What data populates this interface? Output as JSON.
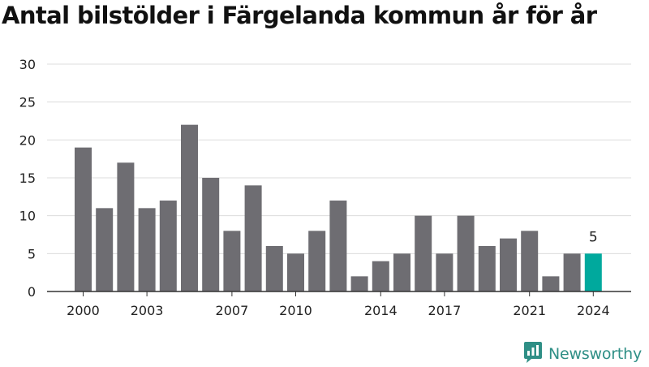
{
  "title": "Antal bilstölder i Färgelanda kommun år för år",
  "brand": {
    "name": "Newsworthy",
    "icon": "newsworthy-logo-icon",
    "color": "#2f8f86"
  },
  "colors": {
    "bar": "#6e6d72",
    "highlight": "#00a99d",
    "grid": "#dcdcdc",
    "axis": "#333333",
    "text": "#222222"
  },
  "chart_data": {
    "type": "bar",
    "title": "Antal bilstölder i Färgelanda kommun år för år",
    "xlabel": "",
    "ylabel": "",
    "categories": [
      "2000",
      "2001",
      "2002",
      "2003",
      "2004",
      "2005",
      "2006",
      "2007",
      "2008",
      "2009",
      "2010",
      "2011",
      "2012",
      "2013",
      "2014",
      "2015",
      "2016",
      "2017",
      "2018",
      "2019",
      "2020",
      "2021",
      "2022",
      "2023",
      "2024"
    ],
    "values": [
      19,
      11,
      17,
      11,
      12,
      22,
      15,
      8,
      14,
      6,
      5,
      8,
      12,
      2,
      4,
      5,
      10,
      5,
      10,
      6,
      7,
      8,
      2,
      5,
      5
    ],
    "highlight_index": 24,
    "data_labels": [
      {
        "index": 24,
        "text": "5"
      }
    ],
    "x_tick_labels": [
      "2000",
      "2003",
      "2007",
      "2010",
      "2014",
      "2017",
      "2021",
      "2024"
    ],
    "y_ticks": [
      0,
      5,
      10,
      15,
      20,
      25,
      30
    ],
    "ylim": [
      0,
      30
    ],
    "grid": true,
    "legend": "none"
  }
}
